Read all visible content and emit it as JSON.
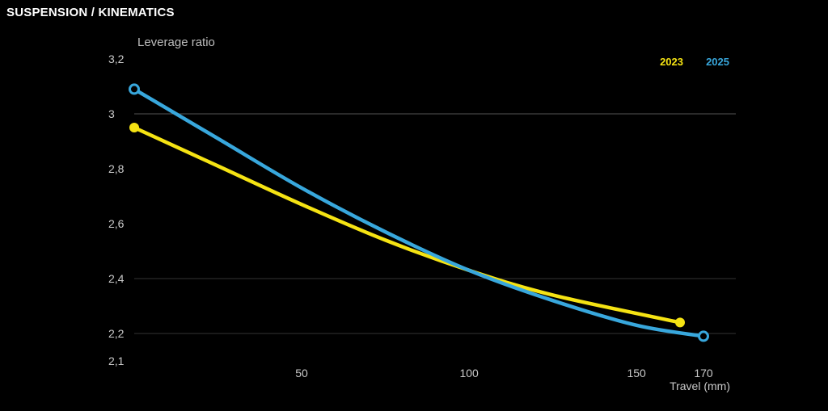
{
  "header": {
    "title": "SUSPENSION / KINEMATICS"
  },
  "chart_data": {
    "type": "line",
    "title": "",
    "xlabel": "Travel (mm)",
    "ylabel": "Leverage ratio",
    "xlim": [
      0,
      170
    ],
    "ylim": [
      2.1,
      3.2
    ],
    "x_ticks": [
      "50",
      "100",
      "150",
      "170"
    ],
    "y_ticks": [
      "2,1",
      "2,2",
      "2,4",
      "2,6",
      "2,8",
      "3",
      "3,2"
    ],
    "gridlines_y": [
      2.2,
      2.4,
      3.0
    ],
    "legend_position": "top-right",
    "series": [
      {
        "name": "2023",
        "color": "#f5e313",
        "x": [
          0,
          25,
          50,
          75,
          100,
          125,
          163
        ],
        "y": [
          2.95,
          2.81,
          2.67,
          2.54,
          2.43,
          2.34,
          2.24
        ]
      },
      {
        "name": "2025",
        "color": "#38a7dc",
        "x": [
          0,
          25,
          50,
          75,
          100,
          125,
          150,
          170
        ],
        "y": [
          3.09,
          2.91,
          2.73,
          2.57,
          2.43,
          2.32,
          2.23,
          2.19
        ]
      }
    ]
  }
}
